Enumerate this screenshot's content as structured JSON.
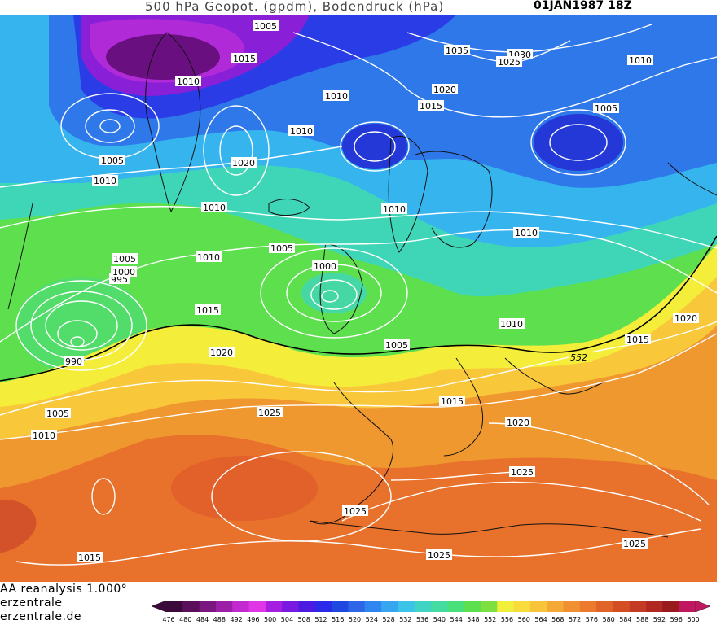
{
  "header": {
    "title": "500 hPa Geopot. (gpdm), Bodendruck (hPa)",
    "datetime": "01JAN1987 18Z"
  },
  "footer": {
    "source_line": "AA reanalysis 1.000°",
    "site_line1": "erzentrale",
    "site_line2": "erzentrale.de"
  },
  "colorbar": {
    "ticks": [
      "476",
      "480",
      "484",
      "488",
      "492",
      "496",
      "500",
      "504",
      "508",
      "512",
      "516",
      "520",
      "524",
      "528",
      "532",
      "536",
      "540",
      "544",
      "548",
      "552",
      "556",
      "560",
      "564",
      "568",
      "572",
      "576",
      "580",
      "584",
      "588",
      "592",
      "596",
      "600"
    ],
    "colors": [
      "#3b0a3a",
      "#5a0f5a",
      "#7a1680",
      "#9c1fa8",
      "#c22ad0",
      "#e036e8",
      "#a61fe0",
      "#7a1ae0",
      "#4c1ae0",
      "#2a2ae8",
      "#1f48e0",
      "#2e66e8",
      "#2f86f0",
      "#36a6f0",
      "#3cc4e8",
      "#40d4c4",
      "#44dca0",
      "#48e07a",
      "#5ce050",
      "#7ee040",
      "#f0f03a",
      "#f8dc3c",
      "#f8c43a",
      "#f4a836",
      "#f09030",
      "#ec7a2c",
      "#e06428",
      "#d44e24",
      "#c43a22",
      "#b02820",
      "#981a1c",
      "#c01860"
    ]
  },
  "thickness_label": "552",
  "pressure_labels": [
    {
      "text": "1005",
      "name": "isobar-label-1005-greenland-north"
    },
    {
      "text": "1015",
      "name": "isobar-label-1015-greenland"
    },
    {
      "text": "1010",
      "name": "isobar-label-1010-baffin"
    },
    {
      "text": "1010",
      "name": "isobar-label-1010-greenland-east"
    },
    {
      "text": "1010",
      "name": "isobar-label-1010-denmark-strait"
    },
    {
      "text": "1035",
      "name": "isobar-label-1035-arctic"
    },
    {
      "text": "1030",
      "name": "isobar-label-1030-arctic"
    },
    {
      "text": "1025",
      "name": "isobar-label-1025-arctic"
    },
    {
      "text": "1020",
      "name": "isobar-label-1020-svalbard"
    },
    {
      "text": "1015",
      "name": "isobar-label-1015-svalbard"
    },
    {
      "text": "1010",
      "name": "isobar-label-1010-northeast"
    },
    {
      "text": "1005",
      "name": "isobar-label-1005-barents"
    },
    {
      "text": "1005",
      "name": "isobar-label-1005-labrador"
    },
    {
      "text": "1010",
      "name": "isobar-label-1010-labrador"
    },
    {
      "text": "1020",
      "name": "isobar-label-1020-greenland-high"
    },
    {
      "text": "1010",
      "name": "isobar-label-1010-iceland"
    },
    {
      "text": "1010",
      "name": "isobar-label-1010-norway"
    },
    {
      "text": "1010",
      "name": "isobar-label-1010-russia"
    },
    {
      "text": "1005",
      "name": "isobar-label-1005-atlantic-north"
    },
    {
      "text": "1000",
      "name": "isobar-label-1000-atlantic"
    },
    {
      "text": "995",
      "name": "isobar-label-995-atlantic"
    },
    {
      "text": "1010",
      "name": "isobar-label-1010-atlantic-mid"
    },
    {
      "text": "1005",
      "name": "isobar-label-1005-scotland"
    },
    {
      "text": "1000",
      "name": "isobar-label-1000-scotland"
    },
    {
      "text": "1015",
      "name": "isobar-label-1015-atlantic"
    },
    {
      "text": "990",
      "name": "isobar-label-990-atlantic-low"
    },
    {
      "text": "1020",
      "name": "isobar-label-1020-atlantic"
    },
    {
      "text": "1005",
      "name": "isobar-label-1005-france"
    },
    {
      "text": "1010",
      "name": "isobar-label-1010-poland"
    },
    {
      "text": "1015",
      "name": "isobar-label-1015-ukraine"
    },
    {
      "text": "1020",
      "name": "isobar-label-1020-russia-south"
    },
    {
      "text": "1005",
      "name": "isobar-label-1005-west-atlantic"
    },
    {
      "text": "1010",
      "name": "isobar-label-1010-west-atlantic"
    },
    {
      "text": "1025",
      "name": "isobar-label-1025-azores"
    },
    {
      "text": "1015",
      "name": "isobar-label-1015-italy"
    },
    {
      "text": "1020",
      "name": "isobar-label-1020-balkans"
    },
    {
      "text": "1025",
      "name": "isobar-label-1025-libya"
    },
    {
      "text": "1025",
      "name": "isobar-label-1025-algeria"
    },
    {
      "text": "1025",
      "name": "isobar-label-1025-sahara"
    },
    {
      "text": "1025",
      "name": "isobar-label-1025-egypt"
    },
    {
      "text": "1015",
      "name": "isobar-label-1015-southwest"
    }
  ]
}
